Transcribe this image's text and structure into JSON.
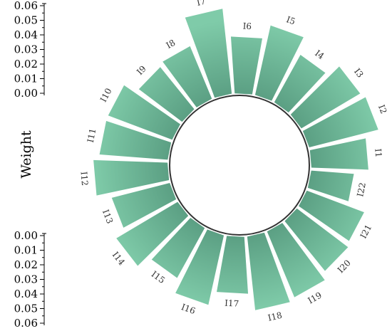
{
  "chart_data": {
    "type": "bar",
    "layout": "radial",
    "categories": [
      "I1",
      "I2",
      "I3",
      "I4",
      "I5",
      "I6",
      "I7",
      "I8",
      "I9",
      "I10",
      "I11",
      "I12",
      "I13",
      "I14",
      "I15",
      "I16",
      "I17",
      "I18",
      "I19",
      "I20",
      "I21",
      "I22"
    ],
    "values": [
      0.04,
      0.05,
      0.048,
      0.038,
      0.05,
      0.04,
      0.06,
      0.04,
      0.038,
      0.048,
      0.048,
      0.052,
      0.042,
      0.05,
      0.04,
      0.05,
      0.04,
      0.052,
      0.05,
      0.045,
      0.043,
      0.03
    ],
    "ylabel": "Weight",
    "yticks": [
      "0.00",
      "0.01",
      "0.02",
      "0.03",
      "0.04",
      "0.05",
      "0.06"
    ],
    "ylim": [
      0,
      0.06
    ],
    "grid": false,
    "legend": "none",
    "bar_color": "#7fcba9",
    "bar_color_inner": "#5a9e82",
    "ring_color": "#333333"
  }
}
